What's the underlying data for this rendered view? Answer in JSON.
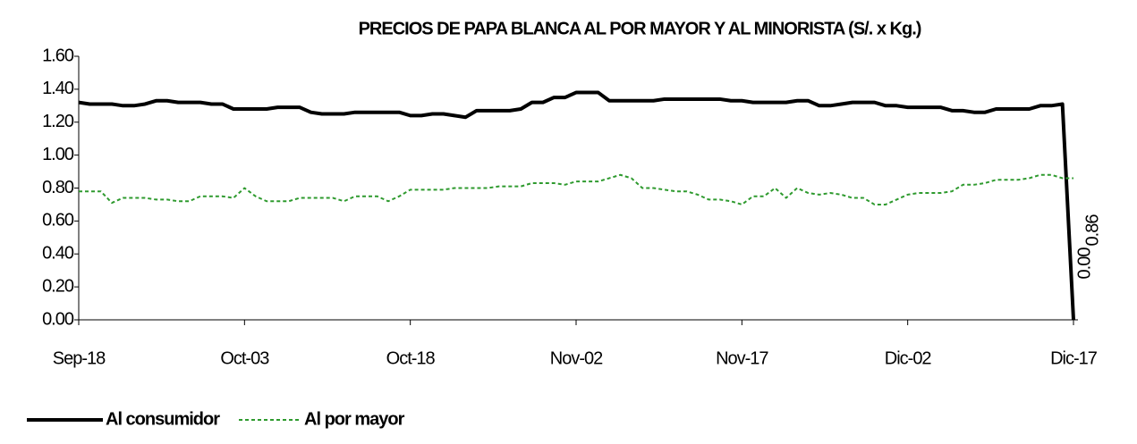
{
  "chart_data": {
    "type": "line",
    "title": "PRECIOS DE PAPA BLANCA AL POR MAYOR Y AL MINORISTA   (S/. x Kg.)",
    "categories": [
      "Sep-18",
      null,
      null,
      null,
      null,
      null,
      null,
      null,
      null,
      null,
      null,
      null,
      null,
      null,
      null,
      "Oct-03",
      null,
      null,
      null,
      null,
      null,
      null,
      null,
      null,
      null,
      null,
      null,
      null,
      null,
      null,
      "Oct-18",
      null,
      null,
      null,
      null,
      null,
      null,
      null,
      null,
      null,
      null,
      null,
      null,
      null,
      null,
      "Nov-02",
      null,
      null,
      null,
      null,
      null,
      null,
      null,
      null,
      null,
      null,
      null,
      null,
      null,
      null,
      "Nov-17",
      null,
      null,
      null,
      null,
      null,
      null,
      null,
      null,
      null,
      null,
      null,
      null,
      null,
      null,
      "Dic-02",
      null,
      null,
      null,
      null,
      null,
      null,
      null,
      null,
      null,
      null,
      null,
      null,
      null,
      null,
      "Dic-17"
    ],
    "series": [
      {
        "name": "Al consumidor",
        "color": "#000000",
        "line_style": "solid",
        "values": [
          1.32,
          1.31,
          1.31,
          1.31,
          1.3,
          1.3,
          1.31,
          1.33,
          1.33,
          1.32,
          1.32,
          1.32,
          1.31,
          1.31,
          1.28,
          1.28,
          1.28,
          1.28,
          1.29,
          1.29,
          1.29,
          1.26,
          1.25,
          1.25,
          1.25,
          1.26,
          1.26,
          1.26,
          1.26,
          1.26,
          1.24,
          1.24,
          1.25,
          1.25,
          1.24,
          1.23,
          1.27,
          1.27,
          1.27,
          1.27,
          1.28,
          1.32,
          1.32,
          1.35,
          1.35,
          1.38,
          1.38,
          1.38,
          1.33,
          1.33,
          1.33,
          1.33,
          1.33,
          1.34,
          1.34,
          1.34,
          1.34,
          1.34,
          1.34,
          1.33,
          1.33,
          1.32,
          1.32,
          1.32,
          1.32,
          1.33,
          1.33,
          1.3,
          1.3,
          1.31,
          1.32,
          1.32,
          1.32,
          1.3,
          1.3,
          1.29,
          1.29,
          1.29,
          1.29,
          1.27,
          1.27,
          1.26,
          1.26,
          1.28,
          1.28,
          1.28,
          1.28,
          1.3,
          1.3,
          1.31,
          0
        ],
        "value_labels": [
          null,
          null,
          null,
          null,
          null,
          null,
          null,
          null,
          null,
          null,
          null,
          null,
          null,
          null,
          null,
          null,
          null,
          null,
          null,
          null,
          null,
          null,
          null,
          null,
          null,
          null,
          null,
          null,
          null,
          null,
          null,
          null,
          null,
          null,
          null,
          null,
          null,
          null,
          null,
          null,
          null,
          null,
          null,
          null,
          null,
          null,
          null,
          null,
          null,
          null,
          null,
          null,
          null,
          null,
          null,
          null,
          null,
          null,
          null,
          null,
          null,
          null,
          null,
          null,
          null,
          null,
          null,
          null,
          null,
          null,
          null,
          null,
          null,
          null,
          null,
          null,
          null,
          null,
          null,
          null,
          null,
          null,
          null,
          null,
          null,
          null,
          null,
          null,
          null,
          null,
          "0.00"
        ]
      },
      {
        "name": "Al por mayor",
        "color": "#2e9a2e",
        "line_style": "dashed",
        "values": [
          0.78,
          0.78,
          0.78,
          0.71,
          0.74,
          0.74,
          0.74,
          0.73,
          0.73,
          0.72,
          0.72,
          0.75,
          0.75,
          0.75,
          0.74,
          0.8,
          0.75,
          0.72,
          0.72,
          0.72,
          0.74,
          0.74,
          0.74,
          0.74,
          0.72,
          0.75,
          0.75,
          0.75,
          0.72,
          0.75,
          0.79,
          0.79,
          0.79,
          0.79,
          0.8,
          0.8,
          0.8,
          0.8,
          0.81,
          0.81,
          0.81,
          0.83,
          0.83,
          0.83,
          0.82,
          0.84,
          0.84,
          0.84,
          0.86,
          0.88,
          0.86,
          0.8,
          0.8,
          0.79,
          0.78,
          0.78,
          0.76,
          0.73,
          0.73,
          0.72,
          0.7,
          0.75,
          0.75,
          0.8,
          0.74,
          0.8,
          0.77,
          0.76,
          0.77,
          0.76,
          0.74,
          0.74,
          0.7,
          0.7,
          0.73,
          0.76,
          0.77,
          0.77,
          0.77,
          0.78,
          0.82,
          0.82,
          0.83,
          0.85,
          0.85,
          0.85,
          0.86,
          0.88,
          0.88,
          0.86,
          0.86
        ],
        "value_labels": [
          null,
          null,
          null,
          null,
          null,
          null,
          null,
          null,
          null,
          null,
          null,
          null,
          null,
          null,
          null,
          null,
          null,
          null,
          null,
          null,
          null,
          null,
          null,
          null,
          null,
          null,
          null,
          null,
          null,
          null,
          null,
          null,
          null,
          null,
          null,
          null,
          null,
          null,
          null,
          null,
          null,
          null,
          null,
          null,
          null,
          null,
          null,
          null,
          null,
          null,
          null,
          null,
          null,
          null,
          null,
          null,
          null,
          null,
          null,
          null,
          null,
          null,
          null,
          null,
          null,
          null,
          null,
          null,
          null,
          null,
          null,
          null,
          null,
          null,
          null,
          null,
          null,
          null,
          null,
          null,
          null,
          null,
          null,
          null,
          null,
          null,
          null,
          null,
          null,
          null,
          "0.86"
        ]
      }
    ],
    "ylim": [
      0,
      1.6
    ],
    "yticks": [
      {
        "value": 0,
        "label": "0.00"
      },
      {
        "value": 0.2,
        "label": "0.20"
      },
      {
        "value": 0.4,
        "label": "0.40"
      },
      {
        "value": 0.6,
        "label": "0.60"
      },
      {
        "value": 0.8,
        "label": "0.80"
      },
      {
        "value": 1,
        "label": "1.00"
      },
      {
        "value": 1.2,
        "label": "1.20"
      },
      {
        "value": 1.4,
        "label": "1.40"
      },
      {
        "value": 1.6,
        "label": "1.60"
      }
    ],
    "legend": "bottom-left"
  }
}
